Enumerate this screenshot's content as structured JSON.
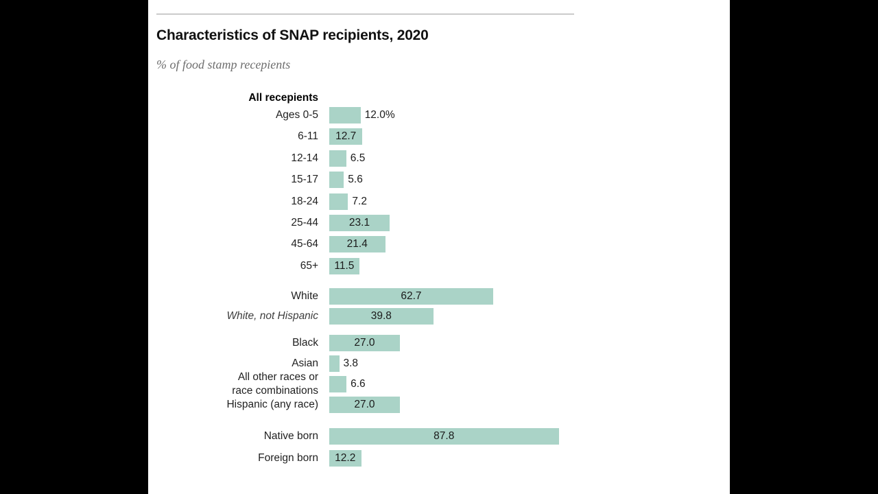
{
  "page": {
    "background_color": "#000000",
    "panel_color": "#ffffff"
  },
  "header": {
    "title": "Characteristics of SNAP recipients, 2020",
    "subtitle": "% of food stamp recepients"
  },
  "chart_data": {
    "type": "bar",
    "orientation": "horizontal",
    "unit": "% of food stamp recipients",
    "bar_color": "#aad3c7",
    "xlim": [
      0,
      100
    ],
    "grid": false,
    "legend": false,
    "sections": [
      {
        "heading": "All recepients",
        "rows": [
          {
            "label": "Ages 0-5",
            "value": 12.0,
            "display": "12.0%",
            "label_inside": false
          },
          {
            "label": "6-11",
            "value": 12.7,
            "display": "12.7",
            "label_inside": true
          },
          {
            "label": "12-14",
            "value": 6.5,
            "display": "6.5",
            "label_inside": false
          },
          {
            "label": "15-17",
            "value": 5.6,
            "display": "5.6",
            "label_inside": false
          },
          {
            "label": "18-24",
            "value": 7.2,
            "display": "7.2",
            "label_inside": false
          },
          {
            "label": "25-44",
            "value": 23.1,
            "display": "23.1",
            "label_inside": true
          },
          {
            "label": "45-64",
            "value": 21.4,
            "display": "21.4",
            "label_inside": true
          },
          {
            "label": "65+",
            "value": 11.5,
            "display": "11.5",
            "label_inside": true
          }
        ]
      },
      {
        "heading": null,
        "rows": [
          {
            "label": "White",
            "value": 62.7,
            "display": "62.7",
            "label_inside": true
          },
          {
            "label": "White, not Hispanic",
            "value": 39.8,
            "display": "39.8",
            "label_inside": true,
            "italic": true
          }
        ]
      },
      {
        "heading": null,
        "rows": [
          {
            "label": "Black",
            "value": 27.0,
            "display": "27.0",
            "label_inside": true
          },
          {
            "label": "Asian",
            "value": 3.8,
            "display": "3.8",
            "label_inside": false
          },
          {
            "label": "All other races or race combinations",
            "label_lines": [
              "All other races or",
              "race combinations"
            ],
            "value": 6.6,
            "display": "6.6",
            "label_inside": false
          },
          {
            "label": "Hispanic (any race)",
            "value": 27.0,
            "display": "27.0",
            "label_inside": true
          }
        ]
      },
      {
        "heading": null,
        "rows": [
          {
            "label": "Native born",
            "value": 87.8,
            "display": "87.8",
            "label_inside": true
          },
          {
            "label": "Foreign born",
            "value": 12.2,
            "display": "12.2",
            "label_inside": true
          }
        ]
      }
    ]
  }
}
